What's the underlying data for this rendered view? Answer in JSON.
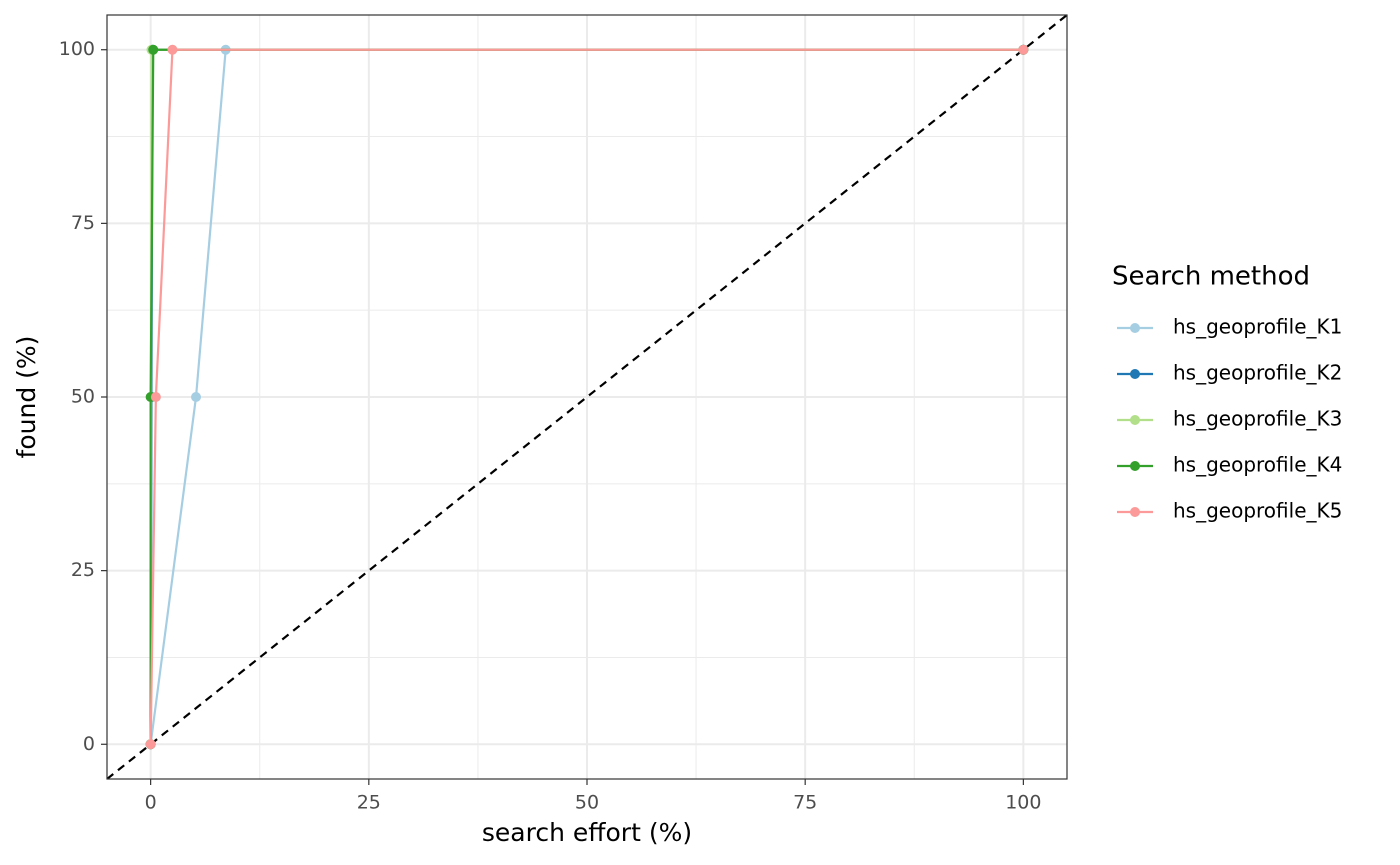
{
  "chart_data": {
    "type": "line",
    "x_label": "search effort (%)",
    "y_label": "found (%)",
    "legend_title": "Search method",
    "legend_position": "right",
    "grid": true,
    "xlim": [
      -5,
      105
    ],
    "ylim": [
      -5,
      105
    ],
    "xticks": [
      0,
      25,
      50,
      75,
      100
    ],
    "yticks": [
      0,
      25,
      50,
      75,
      100
    ],
    "reference_line": {
      "slope": 1,
      "intercept": 0,
      "color": "#000000",
      "dashed": true
    },
    "series": [
      {
        "name": "hs_geoprofile_K1",
        "color": "#a6cee3",
        "x": [
          0,
          5.2,
          8.6,
          100
        ],
        "values": [
          0,
          50,
          100,
          100
        ]
      },
      {
        "name": "hs_geoprofile_K2",
        "color": "#1f78b4",
        "x": [
          0,
          0.1,
          0.2,
          100
        ],
        "values": [
          0,
          50,
          100,
          100
        ]
      },
      {
        "name": "hs_geoprofile_K3",
        "color": "#b2df8a",
        "x": [
          0,
          0.1,
          100
        ],
        "values": [
          0,
          100,
          100
        ]
      },
      {
        "name": "hs_geoprofile_K4",
        "color": "#33a02c",
        "x": [
          0,
          0,
          0.3,
          100
        ],
        "values": [
          0,
          50,
          100,
          100
        ]
      },
      {
        "name": "hs_geoprofile_K5",
        "color": "#fb9a99",
        "x": [
          0,
          0.6,
          2.5,
          100
        ],
        "values": [
          0,
          50,
          100,
          100
        ]
      }
    ]
  }
}
